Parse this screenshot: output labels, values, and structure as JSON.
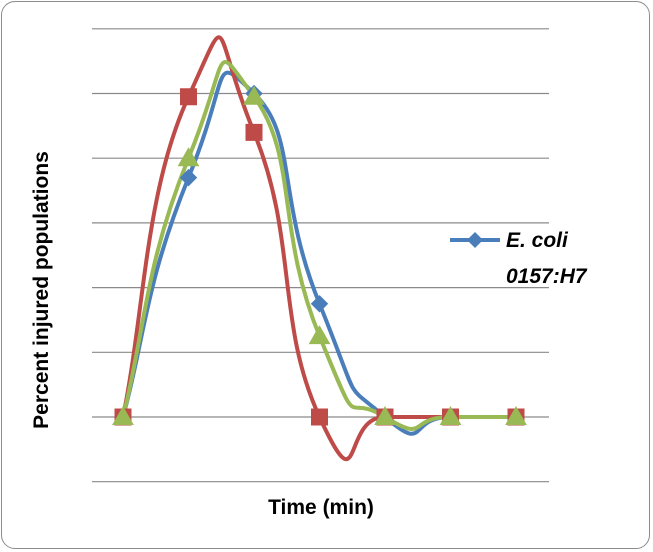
{
  "chart_data": {
    "type": "line",
    "smooth": true,
    "title": "",
    "xlabel": "Time (min)",
    "ylabel": "Percent injured populations",
    "x": [
      0,
      1,
      2,
      3,
      4,
      5,
      6
    ],
    "ylim": [
      -1,
      6
    ],
    "grid": true,
    "gridlines_y": [
      0,
      1,
      2,
      3,
      4,
      5,
      6
    ],
    "legend_position": "right",
    "series": [
      {
        "name": "E. coli 0157:H7",
        "color": "#4a7ebb",
        "marker": "diamond",
        "values": [
          0,
          3.7,
          5,
          1.75,
          0,
          0,
          0
        ]
      },
      {
        "color": "#be4b48",
        "marker": "square",
        "values": [
          0,
          4.95,
          4.4,
          0,
          0,
          0,
          0
        ]
      },
      {
        "color": "#98b954",
        "marker": "triangle",
        "values": [
          0,
          4.0,
          4.95,
          1.25,
          0,
          0,
          0
        ]
      }
    ]
  }
}
